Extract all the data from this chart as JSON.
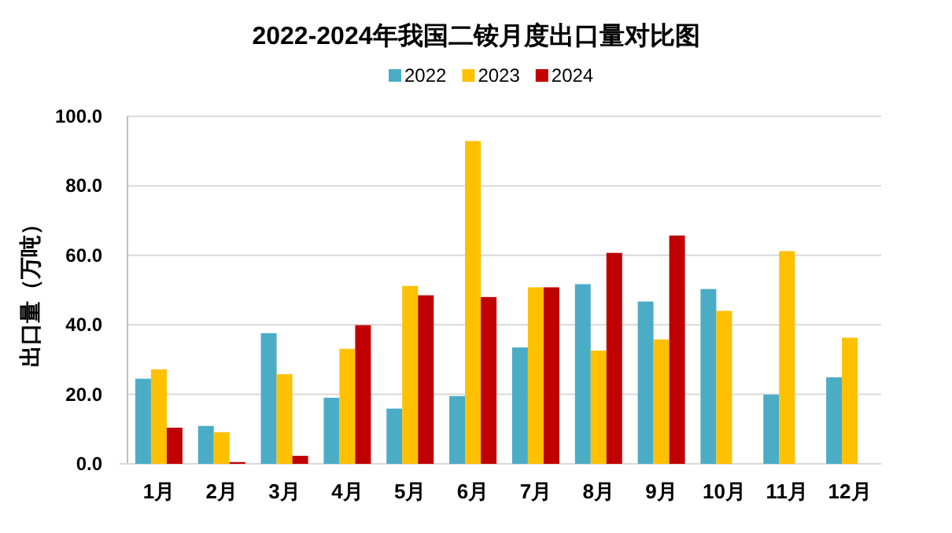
{
  "chart_data": {
    "type": "bar",
    "title": "2022-2024年我国二铵月度出口量对比图",
    "ylabel": "出口量（万吨）",
    "categories": [
      "1月",
      "2月",
      "3月",
      "4月",
      "5月",
      "6月",
      "7月",
      "8月",
      "9月",
      "10月",
      "11月",
      "12月"
    ],
    "series": [
      {
        "name": "2022",
        "color": "#4bacc6",
        "values": [
          24.5,
          10.9,
          37.6,
          19.0,
          15.9,
          19.5,
          33.5,
          51.7,
          46.7,
          50.3,
          19.9,
          24.9
        ]
      },
      {
        "name": "2023",
        "color": "#ffc000",
        "values": [
          27.2,
          9.1,
          25.8,
          33.1,
          51.2,
          92.9,
          50.8,
          32.6,
          35.8,
          44.0,
          61.2,
          36.3
        ]
      },
      {
        "name": "2024",
        "color": "#c00000",
        "values": [
          10.4,
          0.5,
          2.3,
          39.9,
          48.5,
          48.0,
          50.8,
          60.7,
          65.7,
          null,
          null,
          null
        ]
      }
    ],
    "ylim": [
      0,
      100
    ],
    "yticks": [
      {
        "value": 0,
        "label": "0.0"
      },
      {
        "value": 20,
        "label": "20.0"
      },
      {
        "value": 40,
        "label": "40.0"
      },
      {
        "value": 60,
        "label": "60.0"
      },
      {
        "value": 80,
        "label": "80.0"
      },
      {
        "value": 100,
        "label": "100.0"
      }
    ],
    "grid": "y",
    "legend": "top"
  }
}
